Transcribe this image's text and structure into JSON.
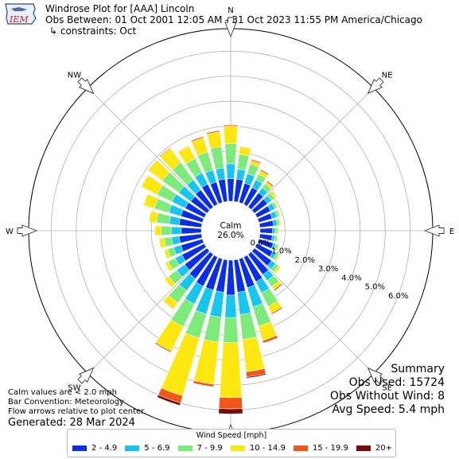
{
  "header": {
    "logo_text": "IEM",
    "title": "Windrose Plot for [AAA] Lincoln",
    "period": "Obs Between: 01 Oct 2001 12:05 AM - 31 Oct 2023 11:55 PM America/Chicago",
    "constraints": "↳ constraints: Oct"
  },
  "footer": {
    "calm_note": "Calm values are < 2.0 mph",
    "bar_convention": "Bar Convention: Meteorology",
    "arrows_note": "Flow arrows relative to plot center.",
    "generated": "Generated: 28 Mar 2024"
  },
  "summary": {
    "title": "Summary",
    "obs_used": "Obs Used: 15724",
    "obs_without_wind": "Obs Without Wind: 8",
    "avg_speed": "Avg Speed: 5.4 mph"
  },
  "colors": {
    "bins": [
      "#0a2ee6",
      "#17c6ef",
      "#7ceb7a",
      "#fde711",
      "#f2561b",
      "#7a0b0b"
    ],
    "grid": "#b0b0b0"
  },
  "chart_data": {
    "type": "windrose",
    "calm_label": "Calm",
    "calm_percent": "26.0%",
    "calm_value": 26.0,
    "radial_ticks": [
      "0.0%",
      "1.0%",
      "2.0%",
      "3.0%",
      "4.0%",
      "5.0%",
      "6.0%"
    ],
    "rlim": [
      0,
      6.9
    ],
    "direction_labels": [
      {
        "label": "N",
        "angle": 0
      },
      {
        "label": "NE",
        "angle": 45
      },
      {
        "label": "E",
        "angle": 90
      },
      {
        "label": "SE",
        "angle": 135
      },
      {
        "label": "S",
        "angle": 180
      },
      {
        "label": "SW",
        "angle": 225
      },
      {
        "label": "W",
        "angle": 270
      },
      {
        "label": "NW",
        "angle": 315
      }
    ],
    "legend_title": "Wind Speed [mph]",
    "bins": [
      "2 - 4.9",
      "5 - 6.9",
      "7 - 9.9",
      "10 - 14.9",
      "15 - 19.9",
      "20+"
    ],
    "directions": [
      0,
      10,
      20,
      30,
      40,
      50,
      60,
      70,
      80,
      90,
      100,
      110,
      120,
      130,
      140,
      150,
      160,
      170,
      180,
      190,
      200,
      210,
      220,
      230,
      240,
      250,
      260,
      270,
      280,
      290,
      300,
      310,
      320,
      330,
      340,
      350
    ],
    "cumulative_percent": [
      [
        0.9,
        1.5,
        2.3,
        3.0,
        3.05,
        3.05
      ],
      [
        0.9,
        1.3,
        1.9,
        2.2,
        2.22,
        2.22
      ],
      [
        0.8,
        1.2,
        1.6,
        1.75,
        1.8,
        1.8
      ],
      [
        0.75,
        1.1,
        1.35,
        1.5,
        1.55,
        1.55
      ],
      [
        0.7,
        0.95,
        1.15,
        1.25,
        1.3,
        1.3
      ],
      [
        0.65,
        0.85,
        1.0,
        1.1,
        1.12,
        1.12
      ],
      [
        0.6,
        0.8,
        0.9,
        0.95,
        0.95,
        0.95
      ],
      [
        0.55,
        0.75,
        0.85,
        0.9,
        0.9,
        0.9
      ],
      [
        0.55,
        0.7,
        0.8,
        0.85,
        0.85,
        0.85
      ],
      [
        0.5,
        0.6,
        0.7,
        0.75,
        0.75,
        0.75
      ],
      [
        0.5,
        0.6,
        0.7,
        0.75,
        0.75,
        0.75
      ],
      [
        0.6,
        0.7,
        0.8,
        0.85,
        0.85,
        0.85
      ],
      [
        0.7,
        0.85,
        0.95,
        1.0,
        1.0,
        1.0
      ],
      [
        0.85,
        1.05,
        1.2,
        1.3,
        1.3,
        1.3
      ],
      [
        1.0,
        1.3,
        1.6,
        1.75,
        1.8,
        1.8
      ],
      [
        1.1,
        1.6,
        2.2,
        2.5,
        2.55,
        2.55
      ],
      [
        1.2,
        2.0,
        2.8,
        3.4,
        3.5,
        3.5
      ],
      [
        1.3,
        2.2,
        3.2,
        4.5,
        4.7,
        4.75
      ],
      [
        1.4,
        2.3,
        3.3,
        5.5,
        5.95,
        6.15
      ],
      [
        1.3,
        2.3,
        3.3,
        5.0,
        5.1,
        5.1
      ],
      [
        1.3,
        2.3,
        3.3,
        5.7,
        6.0,
        6.1
      ],
      [
        1.3,
        2.1,
        3.1,
        4.2,
        4.25,
        4.25
      ],
      [
        1.2,
        1.8,
        2.4,
        2.7,
        2.72,
        2.72
      ],
      [
        1.1,
        1.5,
        1.9,
        2.1,
        2.1,
        2.1
      ],
      [
        1.0,
        1.3,
        1.6,
        1.75,
        1.75,
        1.75
      ],
      [
        0.9,
        1.2,
        1.45,
        1.6,
        1.6,
        1.6
      ],
      [
        0.9,
        1.2,
        1.5,
        1.7,
        1.7,
        1.7
      ],
      [
        0.8,
        1.2,
        1.6,
        1.85,
        1.85,
        1.85
      ],
      [
        0.9,
        1.3,
        1.8,
        2.1,
        2.1,
        2.1
      ],
      [
        0.9,
        1.4,
        2.0,
        2.45,
        2.45,
        2.45
      ],
      [
        0.85,
        1.45,
        2.1,
        2.8,
        2.8,
        2.8
      ],
      [
        0.8,
        1.4,
        2.2,
        2.9,
        2.92,
        2.92
      ],
      [
        0.85,
        1.35,
        2.2,
        2.9,
        2.93,
        2.93
      ],
      [
        0.9,
        1.4,
        2.05,
        2.6,
        2.62,
        2.62
      ],
      [
        0.85,
        1.35,
        2.1,
        2.7,
        2.75,
        2.75
      ],
      [
        0.9,
        1.35,
        2.2,
        2.8,
        2.85,
        2.85
      ]
    ]
  }
}
